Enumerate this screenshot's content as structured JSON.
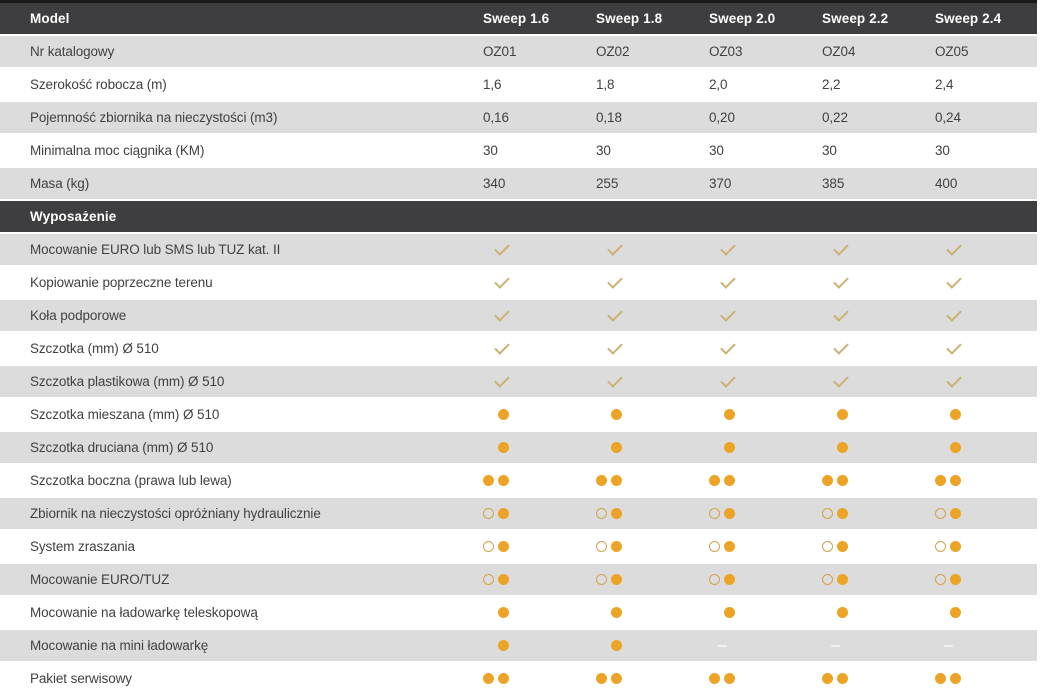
{
  "colors": {
    "header_bg": "#3e3e40",
    "row_gray": "#dcdcdc",
    "row_white": "#ffffff",
    "top_border": "#1a1a1a",
    "text": "#414141",
    "orange_dot": "#eca427",
    "ring_outline": "#d2a34c",
    "check_gold": "#cbb173",
    "dash": "#f1f1f1"
  },
  "table": {
    "header_label": "Model",
    "columns": [
      "Sweep 1.6",
      "Sweep 1.8",
      "Sweep 2.0",
      "Sweep 2.2",
      "Sweep 2.4"
    ],
    "spec_rows": [
      {
        "label": "Nr katalogowy",
        "values": [
          "OZ01",
          "OZ02",
          "OZ03",
          "OZ04",
          "OZ05"
        ]
      },
      {
        "label": "Szerokość robocza (m)",
        "values": [
          "1,6",
          "1,8",
          "2,0",
          "2,2",
          "2,4"
        ]
      },
      {
        "label": "Pojemność zbiornika na nieczystości (m3)",
        "values": [
          "0,16",
          "0,18",
          "0,20",
          "0,22",
          "0,24"
        ]
      },
      {
        "label": "Minimalna moc ciągnika (KM)",
        "values": [
          "30",
          "30",
          "30",
          "30",
          "30"
        ]
      },
      {
        "label": "Masa (kg)",
        "values": [
          "340",
          "255",
          "370",
          "385",
          "400"
        ]
      }
    ],
    "section_header": "Wyposażenie",
    "equipment_rows": [
      {
        "label": "Mocowanie EURO lub SMS lub TUZ kat. II",
        "icons": [
          "check",
          "check",
          "check",
          "check",
          "check"
        ]
      },
      {
        "label": "Kopiowanie poprzeczne terenu",
        "icons": [
          "check",
          "check",
          "check",
          "check",
          "check"
        ]
      },
      {
        "label": "Koła podporowe",
        "icons": [
          "check",
          "check",
          "check",
          "check",
          "check"
        ]
      },
      {
        "label": "Szczotka (mm) Ø 510",
        "icons": [
          "check",
          "check",
          "check",
          "check",
          "check"
        ]
      },
      {
        "label": "Szczotka plastikowa (mm) Ø 510",
        "icons": [
          "check",
          "check",
          "check",
          "check",
          "check"
        ]
      },
      {
        "label": "Szczotka mieszana (mm) Ø 510",
        "icons": [
          "dot",
          "dot",
          "dot",
          "dot",
          "dot"
        ]
      },
      {
        "label": "Szczotka druciana (mm) Ø 510",
        "icons": [
          "dot",
          "dot",
          "dot",
          "dot",
          "dot"
        ]
      },
      {
        "label": "Szczotka boczna (prawa lub lewa)",
        "icons": [
          "dot dot",
          "dot dot",
          "dot dot",
          "dot dot",
          "dot dot"
        ]
      },
      {
        "label": "Zbiornik na nieczystości opróżniany hydraulicznie",
        "icons": [
          "ring dot",
          "ring dot",
          "ring dot",
          "ring dot",
          "ring dot"
        ]
      },
      {
        "label": "System zraszania",
        "icons": [
          "ring dot",
          "ring dot",
          "ring dot",
          "ring dot",
          "ring dot"
        ]
      },
      {
        "label": "Mocowanie EURO/TUZ",
        "icons": [
          "ring dot",
          "ring dot",
          "ring dot",
          "ring dot",
          "ring dot"
        ]
      },
      {
        "label": "Mocowanie na ładowarkę teleskopową",
        "icons": [
          "dot",
          "dot",
          "dot",
          "dot",
          "dot"
        ]
      },
      {
        "label": "Mocowanie na mini ładowarkę",
        "icons": [
          "dot",
          "dot",
          "dash",
          "dash",
          "dash"
        ]
      },
      {
        "label": "Pakiet serwisowy",
        "icons": [
          "dot dot",
          "dot dot",
          "dot dot",
          "dot dot",
          "dot dot"
        ]
      }
    ],
    "icon_legend": {
      "check": "check-icon",
      "dot": "filled-circle-icon",
      "ring": "hollow-circle-icon",
      "dash": "dash-icon"
    }
  }
}
